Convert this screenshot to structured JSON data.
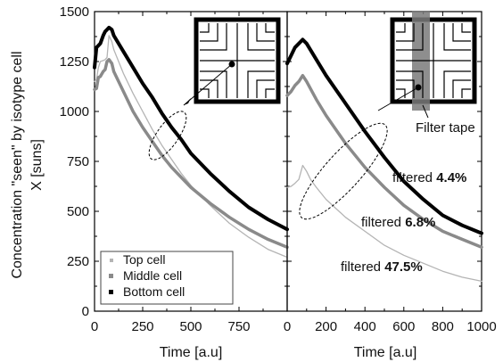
{
  "chart_data": [
    {
      "type": "line",
      "panel": "left",
      "ylabel_line1": "Concentration \"seen\" by isotype cell",
      "ylabel_line2": "X [suns]",
      "xlabel": "Time [a.u]",
      "xlim": [
        0,
        1000
      ],
      "ylim": [
        0,
        1500
      ],
      "xticks": [
        "0",
        "250",
        "500",
        "750"
      ],
      "yticks": [
        "0",
        "250",
        "500",
        "750",
        "1000",
        "1250",
        "1500"
      ],
      "legend": {
        "placement": "bottom-left",
        "entries": [
          "Top cell",
          "Middle cell",
          "Bottom cell"
        ]
      },
      "series": [
        {
          "name": "Top cell",
          "color": "#b4b4b4",
          "x": [
            0,
            10,
            20,
            30,
            45,
            55,
            65,
            75,
            90,
            100,
            150,
            200,
            250,
            300,
            350,
            400,
            450,
            500,
            600,
            700,
            800,
            900,
            1000
          ],
          "y": [
            1150,
            1160,
            1220,
            1250,
            1255,
            1260,
            1270,
            1380,
            1350,
            1310,
            1190,
            1090,
            1000,
            910,
            830,
            760,
            690,
            630,
            530,
            440,
            370,
            310,
            270
          ]
        },
        {
          "name": "Middle cell",
          "color": "#8a8a8a",
          "x": [
            0,
            10,
            20,
            30,
            45,
            55,
            65,
            75,
            90,
            100,
            150,
            200,
            250,
            300,
            350,
            400,
            450,
            500,
            600,
            700,
            800,
            900,
            1000
          ],
          "y": [
            1110,
            1115,
            1170,
            1175,
            1200,
            1210,
            1250,
            1260,
            1240,
            1200,
            1100,
            1000,
            920,
            850,
            780,
            720,
            670,
            620,
            540,
            470,
            410,
            360,
            320
          ]
        },
        {
          "name": "Bottom cell",
          "color": "#000000",
          "x": [
            0,
            10,
            20,
            30,
            45,
            55,
            65,
            75,
            90,
            100,
            150,
            200,
            250,
            300,
            350,
            400,
            450,
            500,
            600,
            700,
            800,
            900,
            1000
          ],
          "y": [
            1220,
            1320,
            1330,
            1340,
            1380,
            1400,
            1410,
            1420,
            1410,
            1380,
            1300,
            1220,
            1140,
            1070,
            990,
            920,
            860,
            790,
            690,
            600,
            520,
            460,
            410
          ]
        }
      ]
    },
    {
      "type": "line",
      "panel": "right",
      "xlabel": "Time [a.u]",
      "xlim": [
        0,
        1000
      ],
      "ylim": [
        0,
        1500
      ],
      "xticks": [
        "0",
        "200",
        "400",
        "600",
        "800",
        "1000"
      ],
      "annotations": [
        {
          "prefix": "filtered ",
          "value": "4.4%"
        },
        {
          "prefix": "filtered ",
          "value": "6.8%"
        },
        {
          "prefix": "filtered ",
          "value": "47.5%"
        },
        {
          "text": "Filter tape"
        }
      ],
      "series": [
        {
          "name": "filtered 47.5%",
          "color": "#b4b4b4",
          "x": [
            0,
            20,
            40,
            60,
            80,
            100,
            120,
            150,
            200,
            300,
            400,
            500,
            600,
            700,
            800,
            900,
            1000
          ],
          "y": [
            620,
            625,
            640,
            660,
            730,
            700,
            660,
            620,
            560,
            470,
            400,
            330,
            280,
            240,
            200,
            170,
            150
          ]
        },
        {
          "name": "filtered 6.8%",
          "color": "#8a8a8a",
          "x": [
            0,
            20,
            40,
            60,
            80,
            100,
            150,
            200,
            300,
            400,
            500,
            600,
            700,
            800,
            900,
            1000
          ],
          "y": [
            1080,
            1100,
            1130,
            1150,
            1180,
            1150,
            1060,
            980,
            840,
            720,
            620,
            530,
            460,
            400,
            360,
            320
          ]
        },
        {
          "name": "filtered 4.4%",
          "color": "#000000",
          "x": [
            0,
            20,
            40,
            60,
            80,
            100,
            150,
            200,
            300,
            400,
            500,
            600,
            700,
            800,
            900,
            1000
          ],
          "y": [
            1240,
            1280,
            1320,
            1340,
            1360,
            1340,
            1260,
            1180,
            1040,
            900,
            770,
            650,
            560,
            480,
            430,
            390
          ]
        }
      ]
    }
  ]
}
